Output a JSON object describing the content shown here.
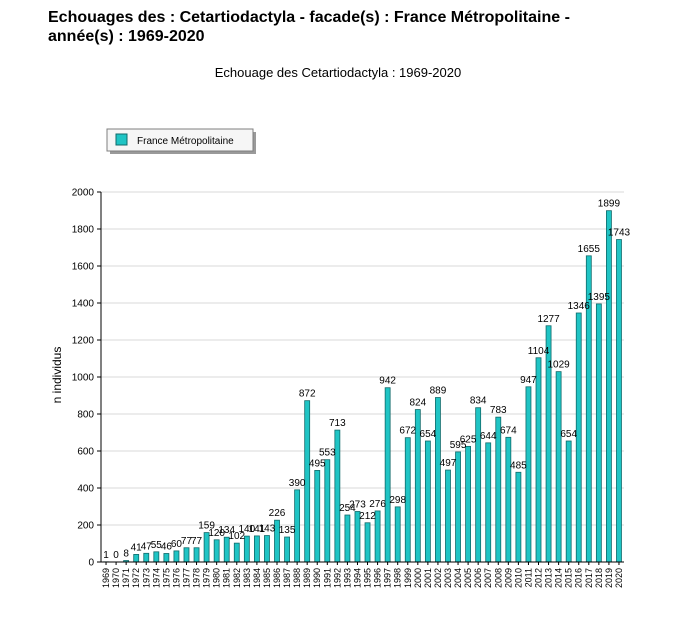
{
  "page": {
    "title_line1": "Echouages des : Cetartiodactyla - facade(s) : France Métropolitaine -",
    "title_line2": "année(s) : 1969-2020"
  },
  "colors": {
    "bar_fill": "#1fc4c4",
    "bar_stroke": "#106a6a",
    "grid": "#d8d8d8",
    "axis": "#000000",
    "legend_border": "#7f7f7f"
  },
  "chart_data": {
    "type": "bar",
    "title": "Echouage des Cetartiodactyla : 1969-2020",
    "xlabel": "",
    "ylabel": "n individus",
    "ylim": [
      0,
      2000
    ],
    "yticks": [
      0,
      200,
      400,
      600,
      800,
      1000,
      1200,
      1400,
      1600,
      1800,
      2000
    ],
    "grid": true,
    "legend_position": "top-left",
    "categories": [
      "1969",
      "1970",
      "1971",
      "1972",
      "1973",
      "1974",
      "1975",
      "1976",
      "1977",
      "1978",
      "1979",
      "1980",
      "1981",
      "1982",
      "1983",
      "1984",
      "1985",
      "1986",
      "1987",
      "1988",
      "1989",
      "1990",
      "1991",
      "1992",
      "1993",
      "1994",
      "1995",
      "1996",
      "1997",
      "1998",
      "1999",
      "2000",
      "2001",
      "2002",
      "2003",
      "2004",
      "2005",
      "2006",
      "2007",
      "2008",
      "2009",
      "2010",
      "2011",
      "2012",
      "2013",
      "2014",
      "2015",
      "2016",
      "2017",
      "2018",
      "2019",
      "2020"
    ],
    "series": [
      {
        "name": "France Métropolitaine",
        "values": [
          1,
          0,
          8,
          41,
          47,
          55,
          46,
          60,
          77,
          77,
          159,
          120,
          134,
          102,
          140,
          141,
          143,
          226,
          135,
          390,
          872,
          495,
          553,
          713,
          254,
          273,
          212,
          276,
          942,
          298,
          672,
          824,
          654,
          889,
          497,
          595,
          625,
          834,
          644,
          783,
          674,
          485,
          947,
          1104,
          1277,
          1029,
          654,
          1346,
          1655,
          1395,
          1899,
          1743
        ],
        "labels": [
          "1",
          "0",
          "8",
          "41",
          "47",
          "55",
          "46",
          "60",
          "77",
          "77",
          "159",
          "120",
          "134",
          "102",
          "140",
          "141",
          "143",
          "226",
          "135",
          "390",
          "872",
          "495",
          "553",
          "713",
          "254",
          "273",
          "212",
          "276",
          "942",
          "298",
          "672",
          "824",
          "654",
          "889",
          "497",
          "595",
          "625",
          "834",
          "644",
          "783",
          "674",
          "485",
          "947",
          "1104",
          "1277",
          "1029",
          "654",
          "1346",
          "1655",
          "1395",
          "1899",
          "1743"
        ]
      }
    ]
  }
}
